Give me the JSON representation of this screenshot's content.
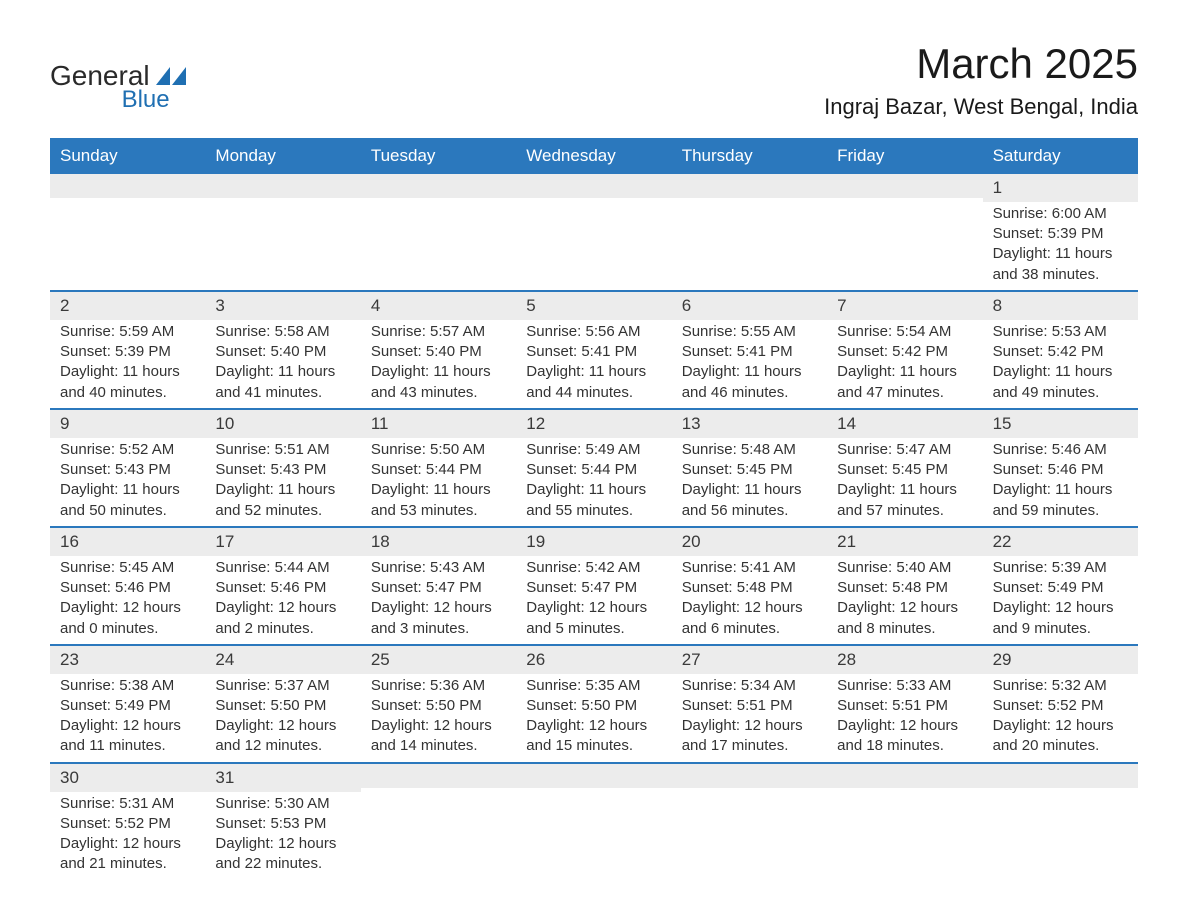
{
  "logo": {
    "text_general": "General",
    "text_blue": "Blue",
    "shape_color": "#1f6fb2"
  },
  "header": {
    "month_title": "March 2025",
    "location": "Ingraj Bazar, West Bengal, India"
  },
  "calendar": {
    "weekdays": [
      "Sunday",
      "Monday",
      "Tuesday",
      "Wednesday",
      "Thursday",
      "Friday",
      "Saturday"
    ],
    "header_bg": "#2b78bd",
    "header_text_color": "#ffffff",
    "row_divider_color": "#2b78bd",
    "daynum_band_bg": "#ececec",
    "text_color": "#333333",
    "font_size_body": 15,
    "font_size_header": 17,
    "weeks": [
      [
        null,
        null,
        null,
        null,
        null,
        null,
        {
          "day": "1",
          "sunrise": "6:00 AM",
          "sunset": "5:39 PM",
          "daylight": "11 hours and 38 minutes."
        }
      ],
      [
        {
          "day": "2",
          "sunrise": "5:59 AM",
          "sunset": "5:39 PM",
          "daylight": "11 hours and 40 minutes."
        },
        {
          "day": "3",
          "sunrise": "5:58 AM",
          "sunset": "5:40 PM",
          "daylight": "11 hours and 41 minutes."
        },
        {
          "day": "4",
          "sunrise": "5:57 AM",
          "sunset": "5:40 PM",
          "daylight": "11 hours and 43 minutes."
        },
        {
          "day": "5",
          "sunrise": "5:56 AM",
          "sunset": "5:41 PM",
          "daylight": "11 hours and 44 minutes."
        },
        {
          "day": "6",
          "sunrise": "5:55 AM",
          "sunset": "5:41 PM",
          "daylight": "11 hours and 46 minutes."
        },
        {
          "day": "7",
          "sunrise": "5:54 AM",
          "sunset": "5:42 PM",
          "daylight": "11 hours and 47 minutes."
        },
        {
          "day": "8",
          "sunrise": "5:53 AM",
          "sunset": "5:42 PM",
          "daylight": "11 hours and 49 minutes."
        }
      ],
      [
        {
          "day": "9",
          "sunrise": "5:52 AM",
          "sunset": "5:43 PM",
          "daylight": "11 hours and 50 minutes."
        },
        {
          "day": "10",
          "sunrise": "5:51 AM",
          "sunset": "5:43 PM",
          "daylight": "11 hours and 52 minutes."
        },
        {
          "day": "11",
          "sunrise": "5:50 AM",
          "sunset": "5:44 PM",
          "daylight": "11 hours and 53 minutes."
        },
        {
          "day": "12",
          "sunrise": "5:49 AM",
          "sunset": "5:44 PM",
          "daylight": "11 hours and 55 minutes."
        },
        {
          "day": "13",
          "sunrise": "5:48 AM",
          "sunset": "5:45 PM",
          "daylight": "11 hours and 56 minutes."
        },
        {
          "day": "14",
          "sunrise": "5:47 AM",
          "sunset": "5:45 PM",
          "daylight": "11 hours and 57 minutes."
        },
        {
          "day": "15",
          "sunrise": "5:46 AM",
          "sunset": "5:46 PM",
          "daylight": "11 hours and 59 minutes."
        }
      ],
      [
        {
          "day": "16",
          "sunrise": "5:45 AM",
          "sunset": "5:46 PM",
          "daylight": "12 hours and 0 minutes."
        },
        {
          "day": "17",
          "sunrise": "5:44 AM",
          "sunset": "5:46 PM",
          "daylight": "12 hours and 2 minutes."
        },
        {
          "day": "18",
          "sunrise": "5:43 AM",
          "sunset": "5:47 PM",
          "daylight": "12 hours and 3 minutes."
        },
        {
          "day": "19",
          "sunrise": "5:42 AM",
          "sunset": "5:47 PM",
          "daylight": "12 hours and 5 minutes."
        },
        {
          "day": "20",
          "sunrise": "5:41 AM",
          "sunset": "5:48 PM",
          "daylight": "12 hours and 6 minutes."
        },
        {
          "day": "21",
          "sunrise": "5:40 AM",
          "sunset": "5:48 PM",
          "daylight": "12 hours and 8 minutes."
        },
        {
          "day": "22",
          "sunrise": "5:39 AM",
          "sunset": "5:49 PM",
          "daylight": "12 hours and 9 minutes."
        }
      ],
      [
        {
          "day": "23",
          "sunrise": "5:38 AM",
          "sunset": "5:49 PM",
          "daylight": "12 hours and 11 minutes."
        },
        {
          "day": "24",
          "sunrise": "5:37 AM",
          "sunset": "5:50 PM",
          "daylight": "12 hours and 12 minutes."
        },
        {
          "day": "25",
          "sunrise": "5:36 AM",
          "sunset": "5:50 PM",
          "daylight": "12 hours and 14 minutes."
        },
        {
          "day": "26",
          "sunrise": "5:35 AM",
          "sunset": "5:50 PM",
          "daylight": "12 hours and 15 minutes."
        },
        {
          "day": "27",
          "sunrise": "5:34 AM",
          "sunset": "5:51 PM",
          "daylight": "12 hours and 17 minutes."
        },
        {
          "day": "28",
          "sunrise": "5:33 AM",
          "sunset": "5:51 PM",
          "daylight": "12 hours and 18 minutes."
        },
        {
          "day": "29",
          "sunrise": "5:32 AM",
          "sunset": "5:52 PM",
          "daylight": "12 hours and 20 minutes."
        }
      ],
      [
        {
          "day": "30",
          "sunrise": "5:31 AM",
          "sunset": "5:52 PM",
          "daylight": "12 hours and 21 minutes."
        },
        {
          "day": "31",
          "sunrise": "5:30 AM",
          "sunset": "5:53 PM",
          "daylight": "12 hours and 22 minutes."
        },
        null,
        null,
        null,
        null,
        null
      ]
    ],
    "labels": {
      "sunrise": "Sunrise:",
      "sunset": "Sunset:",
      "daylight": "Daylight:"
    }
  }
}
